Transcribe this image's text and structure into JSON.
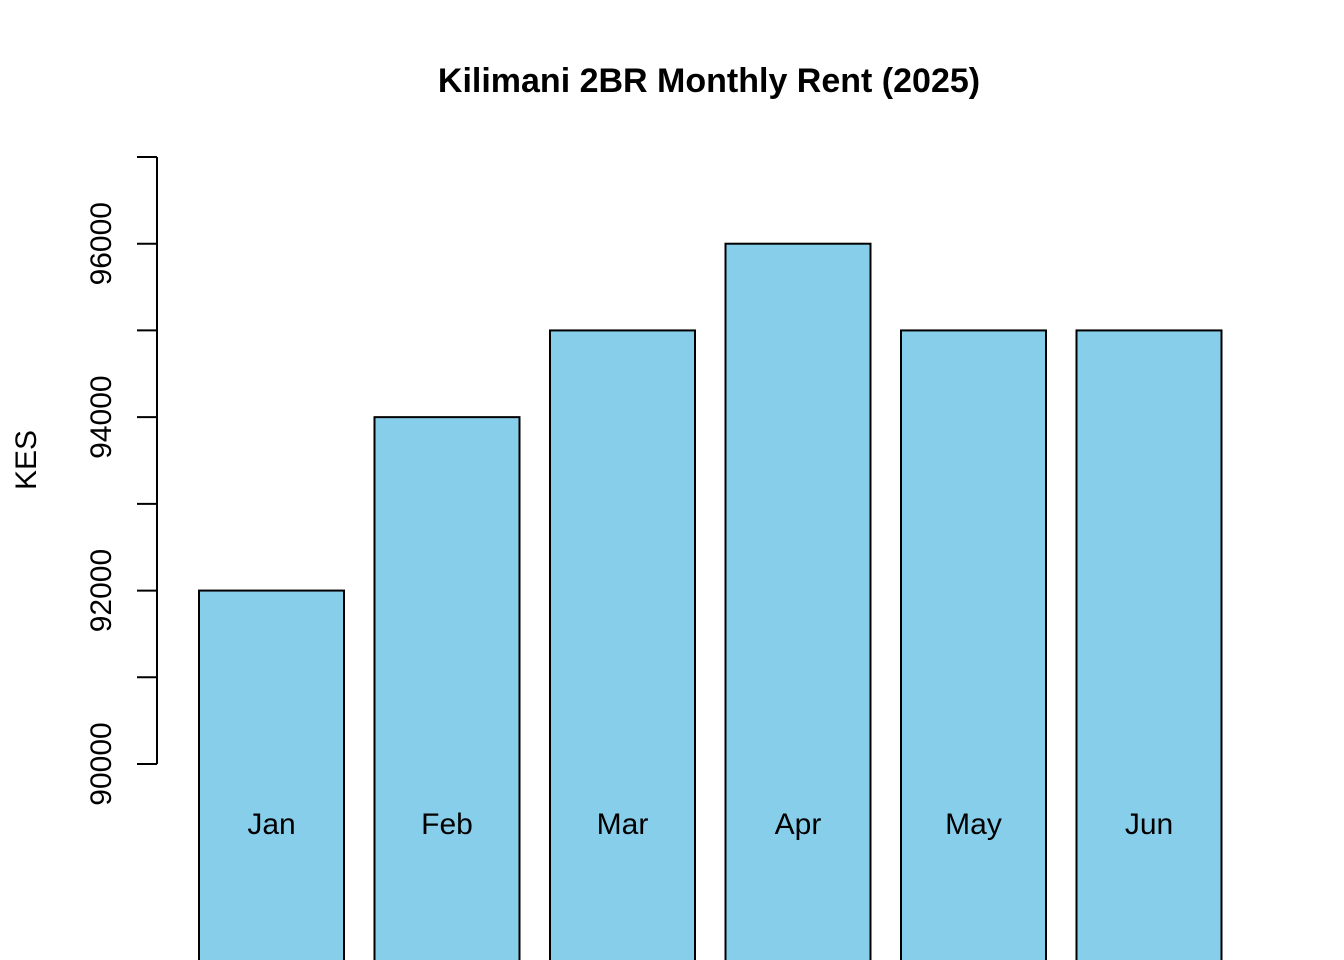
{
  "chart_data": {
    "type": "bar",
    "title": "Kilimani 2BR Monthly Rent (2025)",
    "xlabel": "",
    "ylabel": "KES",
    "categories": [
      "Jan",
      "Feb",
      "Mar",
      "Apr",
      "May",
      "Jun"
    ],
    "values": [
      92000,
      94000,
      95000,
      96000,
      95000,
      95000
    ],
    "ylim": [
      90000,
      97000
    ],
    "y_tick_labels": [
      90000,
      92000,
      94000,
      96000
    ],
    "y_minor_ticks": [
      91000,
      93000,
      95000,
      97000
    ],
    "bar_color": "#87CEEB",
    "bar_border_color": "#000000",
    "grid": false,
    "legend": "none"
  }
}
